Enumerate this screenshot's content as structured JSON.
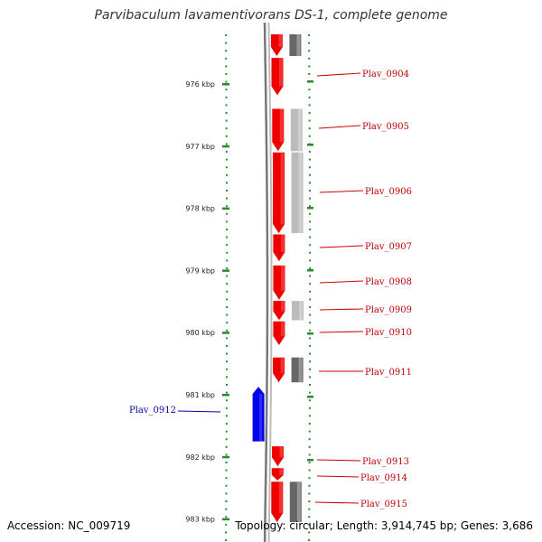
{
  "title": "Parvibaculum lavamentivorans DS-1, complete genome",
  "footer": {
    "accession": "Accession: NC_009719",
    "stats": "Topology: circular; Length: 3,914,745 bp; Genes: 3,686"
  },
  "scale": {
    "unit": "kbp",
    "start_kbp": 975.2,
    "end_kbp": 983.05,
    "ticks": [
      {
        "kbp": 976,
        "label": "976 kbp"
      },
      {
        "kbp": 977,
        "label": "977 kbp"
      },
      {
        "kbp": 978,
        "label": "978 kbp"
      },
      {
        "kbp": 979,
        "label": "979 kbp"
      },
      {
        "kbp": 980,
        "label": "980 kbp"
      },
      {
        "kbp": 981,
        "label": "981 kbp"
      },
      {
        "kbp": 982,
        "label": "982 kbp"
      },
      {
        "kbp": 983,
        "label": "983 kbp"
      }
    ]
  },
  "colors": {
    "forward_gene": "#ee0000",
    "reverse_gene": "#0000ee",
    "homolog_dark": "#666666",
    "homolog_light": "#bbbbbb",
    "backbone": "#888888",
    "tick": "#2a8a2a"
  },
  "genes": [
    {
      "label": "",
      "strand": "forward",
      "start_kbp": 975.2,
      "end_kbp": 975.55
    },
    {
      "label": "Plav_0904",
      "strand": "forward",
      "start_kbp": 975.58,
      "end_kbp": 976.18
    },
    {
      "label": "Plav_0905",
      "strand": "forward",
      "start_kbp": 976.4,
      "end_kbp": 977.08
    },
    {
      "label": "Plav_0906",
      "strand": "forward",
      "start_kbp": 977.1,
      "end_kbp": 978.4
    },
    {
      "label": "Plav_0907",
      "strand": "forward",
      "start_kbp": 978.42,
      "end_kbp": 978.85
    },
    {
      "label": "Plav_0908",
      "strand": "forward",
      "start_kbp": 978.92,
      "end_kbp": 979.47
    },
    {
      "label": "Plav_0909",
      "strand": "forward",
      "start_kbp": 979.49,
      "end_kbp": 979.8
    },
    {
      "label": "Plav_0910",
      "strand": "forward",
      "start_kbp": 979.82,
      "end_kbp": 980.2
    },
    {
      "label": "Plav_0911",
      "strand": "forward",
      "start_kbp": 980.4,
      "end_kbp": 980.8
    },
    {
      "label": "Plav_0912",
      "strand": "reverse",
      "start_kbp": 980.87,
      "end_kbp": 981.75
    },
    {
      "label": "Plav_0913",
      "strand": "forward",
      "start_kbp": 981.83,
      "end_kbp": 982.15
    },
    {
      "label": "Plav_0914",
      "strand": "forward",
      "start_kbp": 982.18,
      "end_kbp": 982.38
    },
    {
      "label": "Plav_0915",
      "strand": "forward",
      "start_kbp": 982.4,
      "end_kbp": 983.05
    }
  ],
  "homologs": [
    {
      "shade": "dark",
      "start_kbp": 975.2,
      "end_kbp": 975.55
    },
    {
      "shade": "light",
      "start_kbp": 976.4,
      "end_kbp": 977.08
    },
    {
      "shade": "light",
      "start_kbp": 977.1,
      "end_kbp": 978.4
    },
    {
      "shade": "light",
      "start_kbp": 979.49,
      "end_kbp": 979.8
    },
    {
      "shade": "dark",
      "start_kbp": 980.4,
      "end_kbp": 980.8
    },
    {
      "shade": "dark",
      "start_kbp": 982.4,
      "end_kbp": 983.05
    }
  ]
}
